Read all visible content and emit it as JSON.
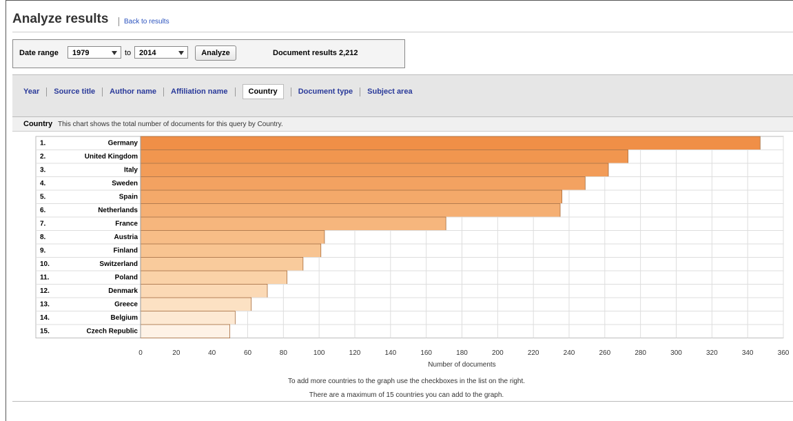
{
  "header": {
    "title": "Analyze results",
    "link": "Back to results"
  },
  "controls": {
    "date_range_label": "Date range",
    "from": "1979",
    "to_label": "to",
    "to": "2014",
    "button": "Analyze",
    "results": "Document results 2,212"
  },
  "tabs": {
    "items": [
      "Year",
      "Source title",
      "Author name",
      "Affiliation name",
      "Country",
      "Document type",
      "Subject area"
    ],
    "selected": 4
  },
  "section": {
    "title": "Country",
    "description": "This chart shows the total number of documents for this query by Country."
  },
  "chart_data": {
    "type": "bar",
    "orientation": "horizontal",
    "ranks": [
      "1.",
      "2.",
      "3.",
      "4.",
      "5.",
      "6.",
      "7.",
      "8.",
      "9.",
      "10.",
      "11.",
      "12.",
      "13.",
      "14.",
      "15."
    ],
    "categories": [
      "Germany",
      "United Kingdom",
      "Italy",
      "Sweden",
      "Spain",
      "Netherlands",
      "France",
      "Austria",
      "Finland",
      "Switzerland",
      "Poland",
      "Denmark",
      "Greece",
      "Belgium",
      "Czech Republic"
    ],
    "values": [
      347,
      273,
      262,
      249,
      236,
      235,
      171,
      103,
      101,
      91,
      82,
      71,
      62,
      53,
      50
    ],
    "colors": [
      "#f08f47",
      "#f1964f",
      "#f29c58",
      "#f3a261",
      "#f4a96a",
      "#f5af73",
      "#f6b67d",
      "#f7bd87",
      "#f8c491",
      "#f9cb9c",
      "#fad2a8",
      "#fbd9b5",
      "#fce1c3",
      "#fde9d3",
      "#fef2e6"
    ],
    "xlim": [
      0,
      360
    ],
    "xticks": [
      0,
      20,
      40,
      60,
      80,
      100,
      120,
      140,
      160,
      180,
      200,
      220,
      240,
      260,
      280,
      300,
      320,
      340,
      360
    ],
    "xlabel": "Number of documents",
    "grid": true
  },
  "notes": [
    "To add more countries to the graph use the checkboxes in the list on the right.",
    "There are a maximum of 15 countries you can add to the graph."
  ]
}
